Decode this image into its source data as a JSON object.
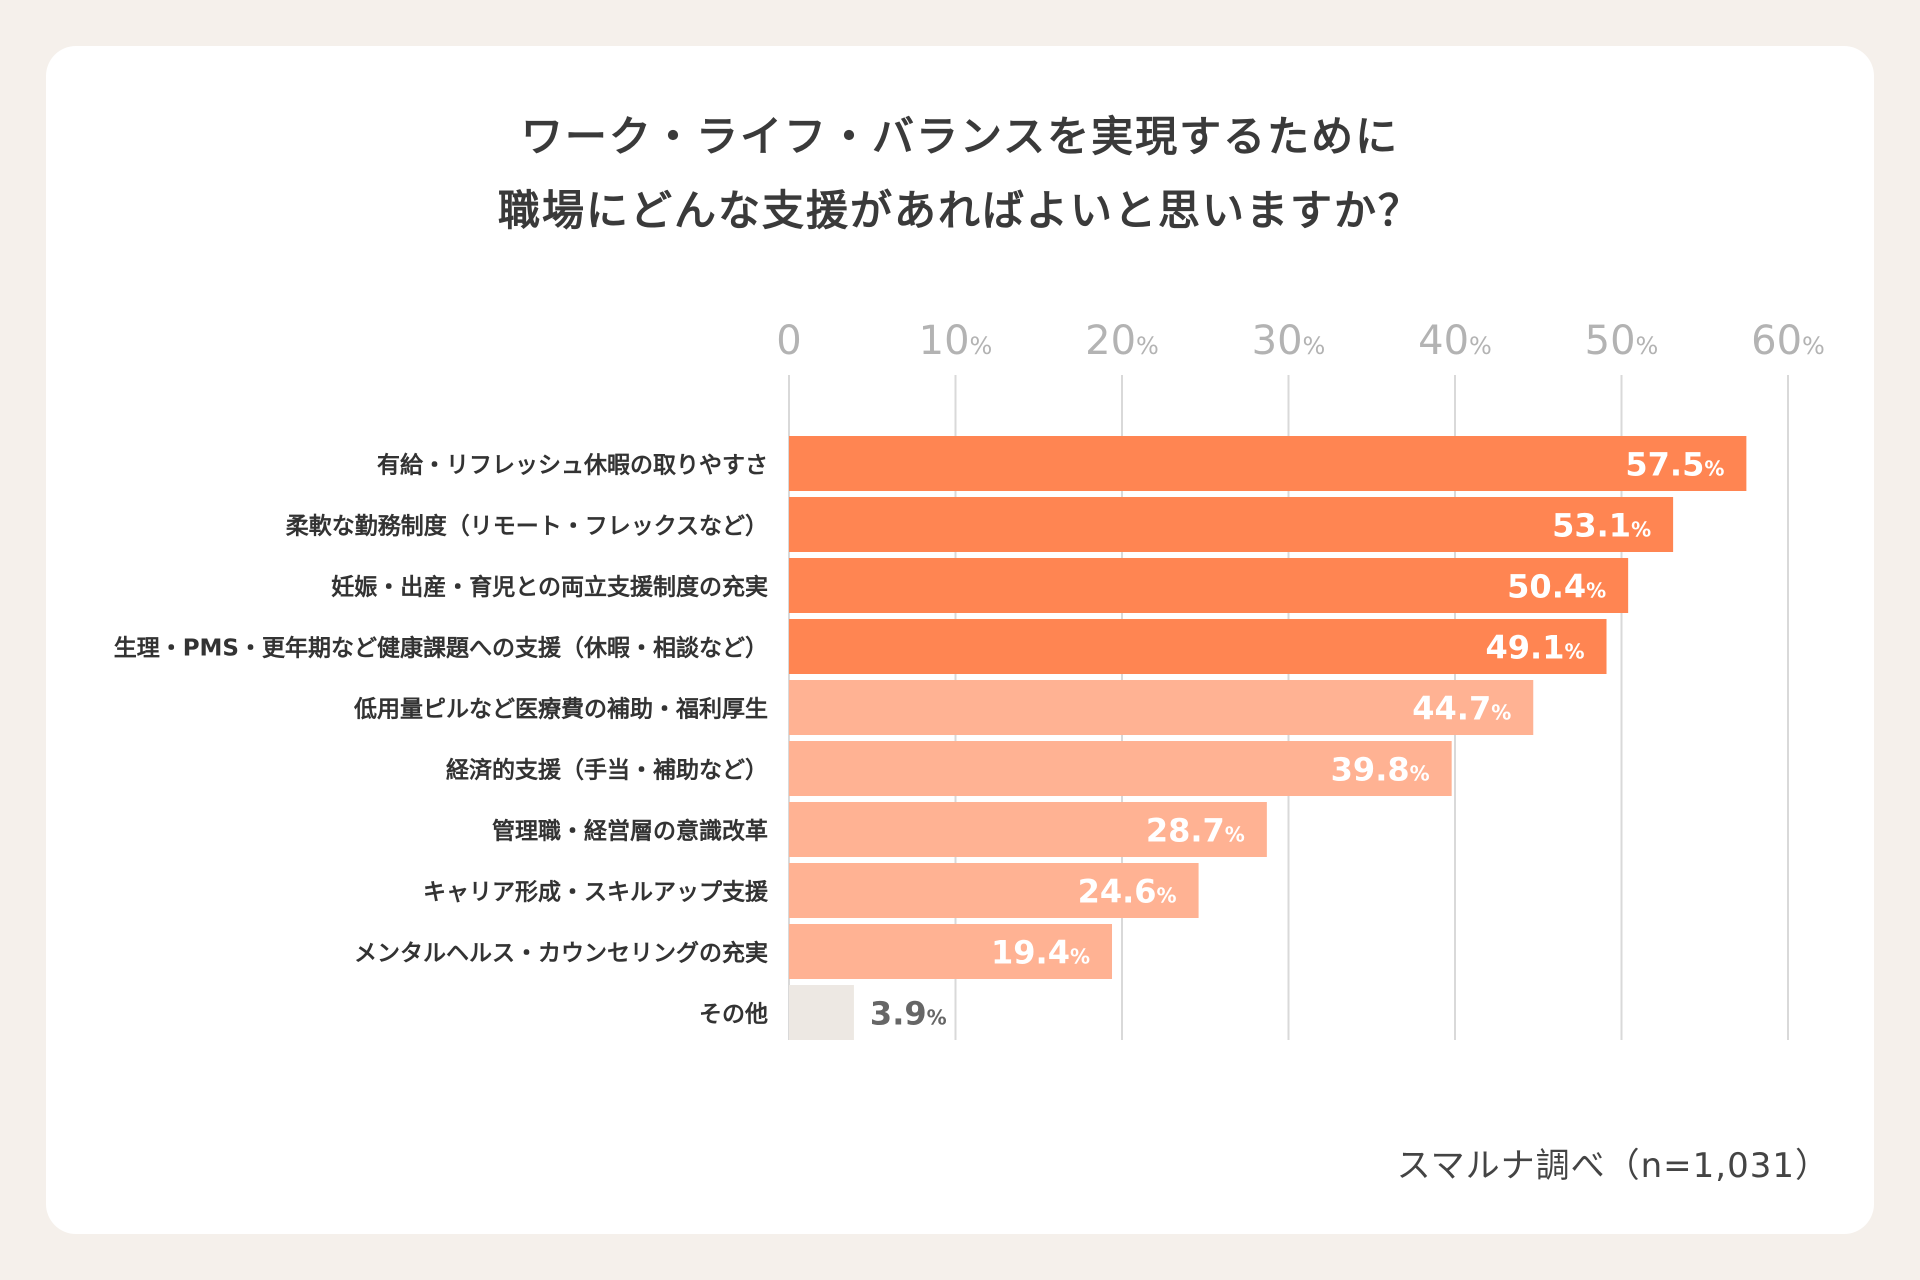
{
  "chart_data": {
    "type": "bar",
    "orientation": "horizontal",
    "title": [
      "ワーク・ライフ・バランスを実現するために",
      "職場にどんな支援があればよいと思いますか？"
    ],
    "categories": [
      "有給・リフレッシュ休暇の取りやすさ",
      "柔軟な勤務制度（リモート・フレックスなど）",
      "妊娠・出産・育児との両立支援制度の充実",
      "生理・PMS・更年期など健康課題への支援（休暇・相談など）",
      "低用量ピルなど医療費の補助・福利厚生",
      "経済的支援（手当・補助など）",
      "管理職・経営層の意識改革",
      "キャリア形成・スキルアップ支援",
      "メンタルヘルス・カウンセリングの充実",
      "その他"
    ],
    "values": [
      57.5,
      53.1,
      50.4,
      49.1,
      44.7,
      39.8,
      28.7,
      24.6,
      19.4,
      3.9
    ],
    "value_labels": [
      "57.5",
      "53.1",
      "50.4",
      "49.1",
      "44.7",
      "39.8",
      "28.7",
      "24.6",
      "19.4",
      "3.9"
    ],
    "value_unit": "%",
    "xlim": [
      0,
      60
    ],
    "ticks": [
      {
        "value": 0,
        "label": "0",
        "unit": ""
      },
      {
        "value": 10,
        "label": "10",
        "unit": "%"
      },
      {
        "value": 20,
        "label": "20",
        "unit": "%"
      },
      {
        "value": 30,
        "label": "30",
        "unit": "%"
      },
      {
        "value": 40,
        "label": "40",
        "unit": "%"
      },
      {
        "value": 50,
        "label": "50",
        "unit": "%"
      },
      {
        "value": 60,
        "label": "60",
        "unit": "%"
      }
    ],
    "bar_tiers": [
      "top",
      "top",
      "top",
      "top",
      "mid",
      "mid",
      "mid",
      "mid",
      "mid",
      "other"
    ],
    "grid": true,
    "source": "スマルナ調べ（n=1,031）"
  },
  "colors": {
    "top": "#ff8552",
    "mid": "#ffb293",
    "other": "#ede8e3",
    "grid": "#d9d9d9",
    "tick_text": "#b3b3b3",
    "category_text": "#333333",
    "value_text_on_bar": "#ffffff",
    "value_text_outside": "#666666"
  }
}
